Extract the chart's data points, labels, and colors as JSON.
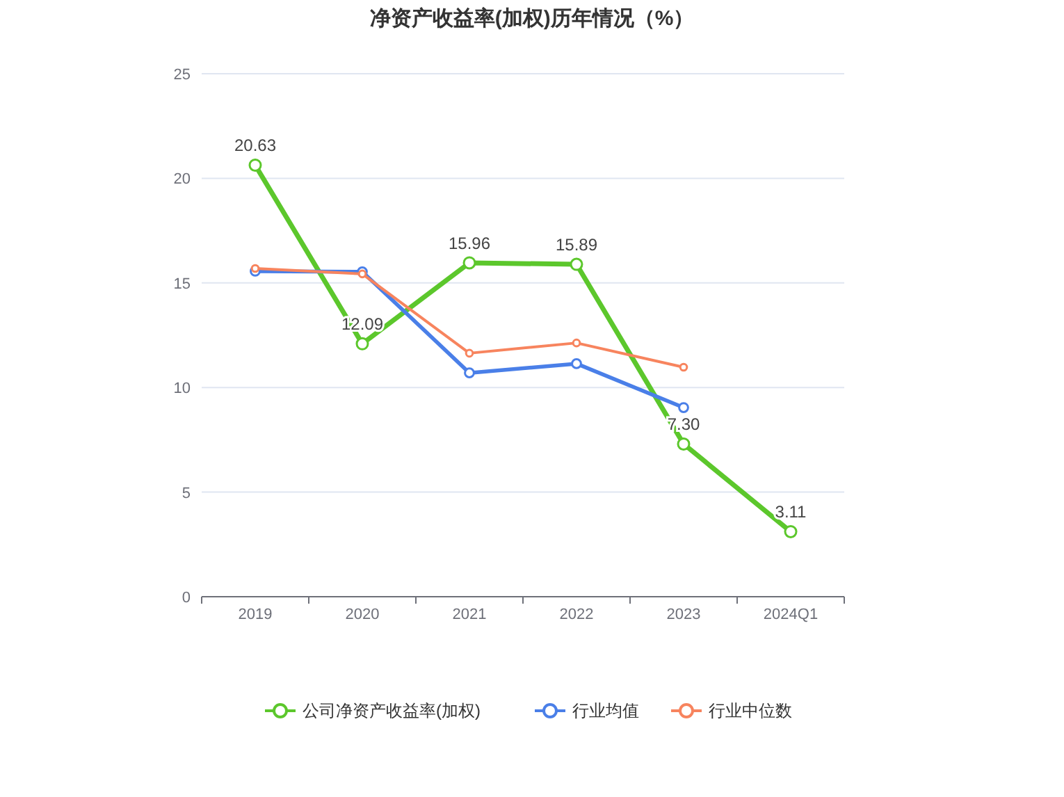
{
  "chart_data": {
    "type": "line",
    "title": "净资产收益率(加权)历年情况（%）",
    "categories": [
      "2019",
      "2020",
      "2021",
      "2022",
      "2023",
      "2024Q1"
    ],
    "series": [
      {
        "name": "公司净资产收益率(加权)",
        "color": "#5cc72c",
        "values": [
          20.63,
          12.09,
          15.96,
          15.89,
          7.3,
          3.11
        ],
        "value_labels": [
          "20.63",
          "12.09",
          "15.96",
          "15.89",
          "7.30",
          "3.11"
        ]
      },
      {
        "name": "行业均值",
        "color": "#4a7fe8",
        "values": [
          15.56,
          15.53,
          10.7,
          11.14,
          9.04,
          null
        ]
      },
      {
        "name": "行业中位数",
        "color": "#f7845e",
        "values": [
          15.69,
          15.43,
          11.64,
          12.13,
          10.97,
          null
        ]
      }
    ],
    "ylim": [
      0,
      25
    ],
    "yticks": [
      0,
      5,
      10,
      15,
      20,
      25
    ],
    "grid": "y",
    "legend": "bottom",
    "marker": "circle",
    "line_style": "solid"
  }
}
